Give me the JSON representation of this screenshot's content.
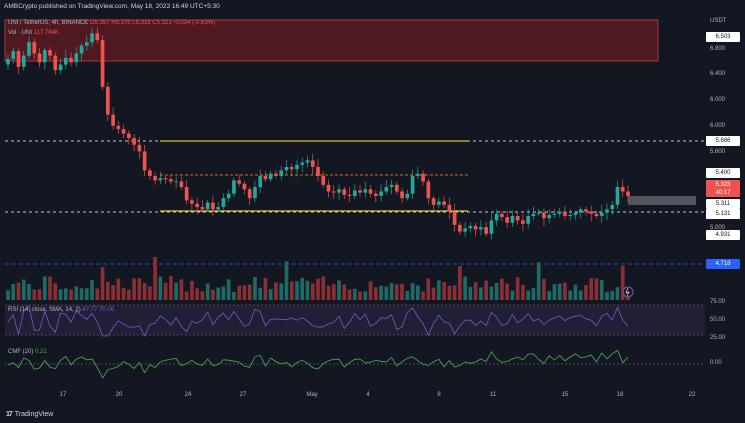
{
  "header": {
    "publish_line": "AMBCrypto published on TradingView.com, May 18, 2023 16:49 UTC+5:30"
  },
  "symbol_line": {
    "label": "UNI / TetherUS, 4h, BINANCE",
    "ohlc": "O5.357 H5.375 L5.318 C5.323 -0.034 (-0.63%)"
  },
  "volume_line": {
    "label": "Vol · UNI",
    "value": "117.784K"
  },
  "rsi_line": {
    "label": "RSI (14, close, SMA, 14, 2)",
    "value": "67.77 70.06"
  },
  "cmf_line": {
    "label": "CMF (20)",
    "value": "0.21"
  },
  "currency": "USDT",
  "price_axis": [
    "6.800",
    "6.400",
    "6.000",
    "5.600",
    "5.000",
    "4.800"
  ],
  "price_tags": {
    "top_box": "6.503",
    "resistance": "5.686",
    "last_high": "5.400",
    "current": "5.323",
    "countdown": "40:17",
    "support_mid": "5.311",
    "support": "5.131",
    "low": "4.931",
    "volume": "4.718"
  },
  "rsi_axis": [
    "75.00",
    "50.00",
    "25.00"
  ],
  "cmf_axis": [
    "0.00"
  ],
  "x_axis": [
    "17",
    "20",
    "24",
    "27",
    "May",
    "4",
    "8",
    "11",
    "15",
    "18",
    "22"
  ],
  "footer": {
    "brand": "TradingView"
  },
  "colors": {
    "up": "#26a69a",
    "down": "#ef5350",
    "rsi": "#7e57c2",
    "cmf": "#4caf50",
    "level": "#ffeb3b",
    "orange": "#ff9800"
  },
  "chart_data": {
    "type": "candlestick",
    "ylim": [
      4.7,
      6.9
    ],
    "closes": [
      6.55,
      6.62,
      6.48,
      6.58,
      6.7,
      6.6,
      6.52,
      6.63,
      6.58,
      6.45,
      6.5,
      6.56,
      6.52,
      6.6,
      6.67,
      6.7,
      6.78,
      6.72,
      6.3,
      6.05,
      5.95,
      5.92,
      5.88,
      5.84,
      5.78,
      5.72,
      5.55,
      5.5,
      5.46,
      5.48,
      5.47,
      5.45,
      5.45,
      5.4,
      5.28,
      5.25,
      5.22,
      5.2,
      5.26,
      5.2,
      5.22,
      5.3,
      5.34,
      5.46,
      5.43,
      5.38,
      5.3,
      5.4,
      5.5,
      5.47,
      5.52,
      5.5,
      5.55,
      5.58,
      5.56,
      5.6,
      5.62,
      5.64,
      5.58,
      5.5,
      5.42,
      5.36,
      5.35,
      5.38,
      5.33,
      5.32,
      5.37,
      5.35,
      5.38,
      5.34,
      5.32,
      5.36,
      5.4,
      5.42,
      5.36,
      5.3,
      5.34,
      5.5,
      5.52,
      5.45,
      5.3,
      5.24,
      5.27,
      5.24,
      5.18,
      5.06,
      5.0,
      5.03,
      5.05,
      5.02,
      5.04,
      4.98,
      5.1,
      5.16,
      5.13,
      5.08,
      5.14,
      5.1,
      5.07,
      5.14,
      5.16,
      5.17,
      5.12,
      5.15,
      5.16,
      5.18,
      5.14,
      5.15,
      5.17,
      5.2,
      5.18,
      5.16,
      5.14,
      5.17,
      5.2,
      5.24,
      5.4,
      5.36,
      5.32
    ]
  }
}
